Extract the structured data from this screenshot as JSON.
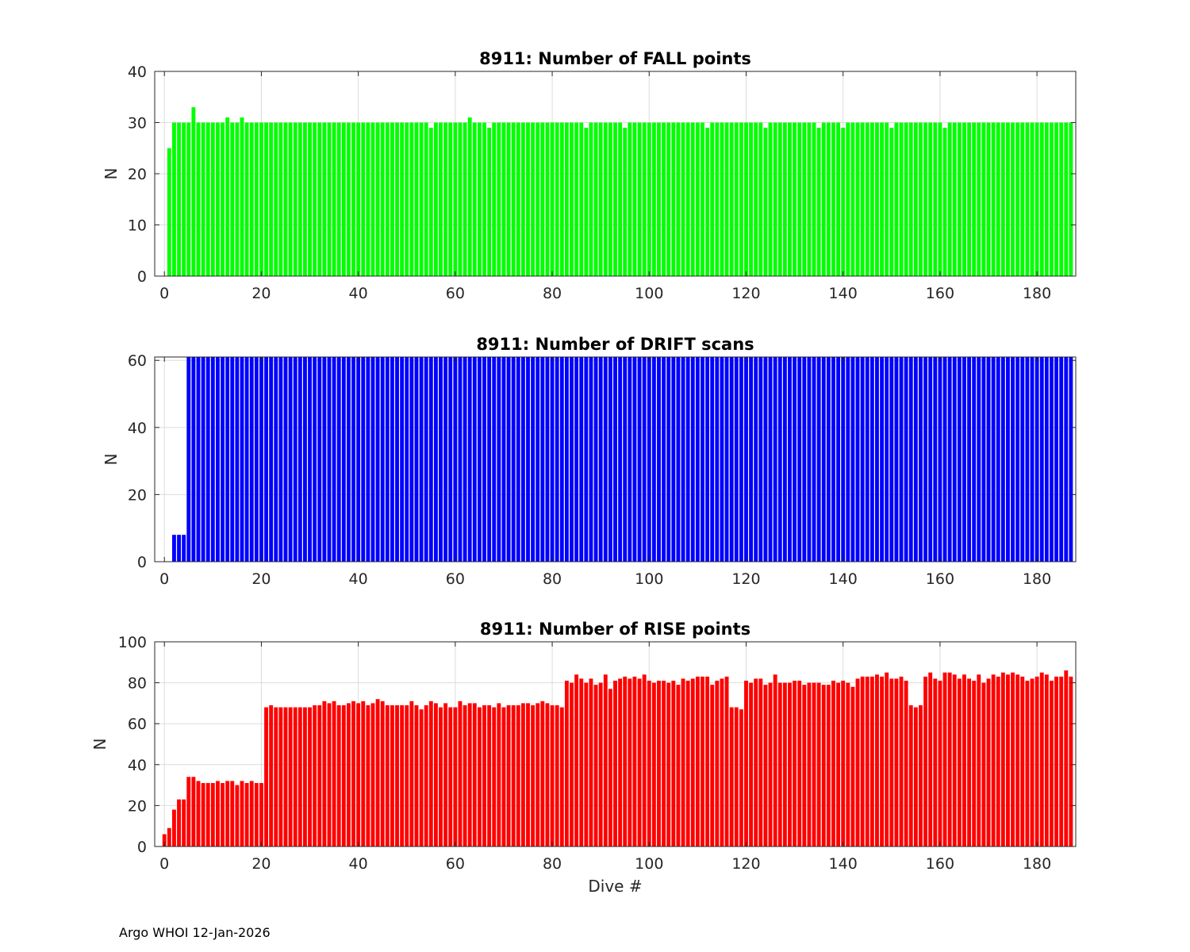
{
  "footer": {
    "text": "Argo WHOI 12-Jan-2026"
  },
  "chart_data": [
    {
      "type": "bar",
      "title": "8911: Number of FALL points",
      "xlabel": "",
      "ylabel": "N",
      "xlim": [
        -2,
        188
      ],
      "ylim": [
        0,
        40
      ],
      "xticks": [
        0,
        20,
        40,
        60,
        80,
        100,
        120,
        140,
        160,
        180
      ],
      "yticks": [
        0,
        10,
        20,
        30,
        40
      ],
      "grid": true,
      "color": "#00ff00",
      "x_start": 1,
      "values": [
        25,
        30,
        30,
        30,
        30,
        33,
        30,
        30,
        30,
        30,
        30,
        30,
        31,
        30,
        30,
        31,
        30,
        30,
        30,
        30,
        30,
        30,
        30,
        30,
        30,
        30,
        30,
        30,
        30,
        30,
        30,
        30,
        30,
        30,
        30,
        30,
        30,
        30,
        30,
        30,
        30,
        30,
        30,
        30,
        30,
        30,
        30,
        30,
        30,
        30,
        30,
        30,
        30,
        30,
        29,
        30,
        30,
        30,
        30,
        30,
        30,
        30,
        31,
        30,
        30,
        30,
        29,
        30,
        30,
        30,
        30,
        30,
        30,
        30,
        30,
        30,
        30,
        30,
        30,
        30,
        30,
        30,
        30,
        30,
        30,
        30,
        29,
        30,
        30,
        30,
        30,
        30,
        30,
        30,
        29,
        30,
        30,
        30,
        30,
        30,
        30,
        30,
        30,
        30,
        30,
        30,
        30,
        30,
        30,
        30,
        30,
        29,
        30,
        30,
        30,
        30,
        30,
        30,
        30,
        30,
        30,
        30,
        30,
        29,
        30,
        30,
        30,
        30,
        30,
        30,
        30,
        30,
        30,
        30,
        29,
        30,
        30,
        30,
        30,
        29,
        30,
        30,
        30,
        30,
        30,
        30,
        30,
        30,
        30,
        29,
        30,
        30,
        30,
        30,
        30,
        30,
        30,
        30,
        30,
        30,
        29,
        30,
        30,
        30,
        30,
        30,
        30,
        30,
        30,
        30,
        30,
        30,
        30,
        30,
        30,
        30,
        30,
        30,
        30,
        30,
        30,
        30,
        30,
        30,
        30,
        30,
        30
      ]
    },
    {
      "type": "bar",
      "title": "8911: Number of DRIFT scans",
      "xlabel": "",
      "ylabel": "N",
      "xlim": [
        -2,
        188
      ],
      "ylim": [
        0,
        61
      ],
      "xticks": [
        0,
        20,
        40,
        60,
        80,
        100,
        120,
        140,
        160,
        180
      ],
      "yticks": [
        0,
        20,
        40,
        60
      ],
      "grid": true,
      "color": "#0000ff",
      "x_start": 1,
      "values": [
        0,
        8,
        8,
        8,
        61,
        61,
        61,
        61,
        61,
        61,
        61,
        61,
        61,
        61,
        61,
        61,
        61,
        61,
        61,
        61,
        61,
        61,
        61,
        61,
        61,
        61,
        61,
        61,
        61,
        61,
        61,
        61,
        61,
        61,
        61,
        61,
        61,
        61,
        61,
        61,
        61,
        61,
        61,
        61,
        61,
        61,
        61,
        61,
        61,
        61,
        61,
        61,
        61,
        61,
        61,
        61,
        61,
        61,
        61,
        61,
        61,
        61,
        61,
        61,
        61,
        61,
        61,
        61,
        61,
        61,
        61,
        61,
        61,
        61,
        61,
        61,
        61,
        61,
        61,
        61,
        61,
        61,
        61,
        61,
        61,
        61,
        61,
        61,
        61,
        61,
        61,
        61,
        61,
        61,
        61,
        61,
        61,
        61,
        61,
        61,
        61,
        61,
        61,
        61,
        61,
        61,
        61,
        61,
        61,
        61,
        61,
        61,
        61,
        61,
        61,
        61,
        61,
        61,
        61,
        61,
        61,
        61,
        61,
        61,
        61,
        61,
        61,
        61,
        61,
        61,
        61,
        61,
        61,
        61,
        61,
        61,
        61,
        61,
        61,
        61,
        61,
        61,
        61,
        61,
        61,
        61,
        61,
        61,
        61,
        61,
        61,
        61,
        61,
        61,
        61,
        61,
        61,
        61,
        61,
        61,
        61,
        61,
        61,
        61,
        61,
        61,
        61,
        61,
        61,
        61,
        61,
        61,
        61,
        61,
        61,
        61,
        61,
        61,
        61,
        61,
        61,
        61,
        61,
        61,
        61,
        61,
        61
      ]
    },
    {
      "type": "bar",
      "title": "8911: Number of RISE points",
      "xlabel": "Dive #",
      "ylabel": "N",
      "xlim": [
        -2,
        188
      ],
      "ylim": [
        0,
        100
      ],
      "xticks": [
        0,
        20,
        40,
        60,
        80,
        100,
        120,
        140,
        160,
        180
      ],
      "yticks": [
        0,
        20,
        40,
        60,
        80,
        100
      ],
      "grid": true,
      "color": "#ff0000",
      "x_start": 0,
      "values": [
        6,
        9,
        18,
        23,
        23,
        34,
        34,
        32,
        31,
        31,
        31,
        32,
        31,
        32,
        32,
        30,
        32,
        31,
        32,
        31,
        31,
        68,
        69,
        68,
        68,
        68,
        68,
        68,
        68,
        68,
        68,
        69,
        69,
        71,
        70,
        71,
        69,
        69,
        70,
        71,
        70,
        71,
        69,
        70,
        72,
        71,
        69,
        69,
        69,
        69,
        69,
        71,
        69,
        67,
        69,
        71,
        70,
        68,
        70,
        68,
        68,
        71,
        69,
        70,
        70,
        68,
        69,
        69,
        68,
        70,
        68,
        69,
        69,
        69,
        70,
        70,
        69,
        70,
        71,
        70,
        69,
        69,
        68,
        81,
        80,
        84,
        82,
        80,
        82,
        79,
        80,
        84,
        77,
        81,
        82,
        83,
        82,
        83,
        82,
        84,
        81,
        80,
        81,
        81,
        80,
        81,
        79,
        82,
        81,
        82,
        83,
        83,
        83,
        79,
        81,
        82,
        83,
        68,
        68,
        67,
        81,
        80,
        82,
        82,
        79,
        80,
        84,
        80,
        80,
        80,
        81,
        81,
        79,
        80,
        80,
        80,
        79,
        79,
        81,
        80,
        81,
        80,
        78,
        82,
        83,
        83,
        83,
        84,
        83,
        85,
        82,
        82,
        83,
        81,
        69,
        68,
        69,
        83,
        85,
        82,
        81,
        85,
        85,
        84,
        82,
        84,
        82,
        81,
        84,
        80,
        82,
        84,
        83,
        85,
        84,
        85,
        84,
        83,
        81,
        82,
        83,
        85,
        84,
        81,
        83,
        83,
        86,
        83
      ]
    }
  ]
}
